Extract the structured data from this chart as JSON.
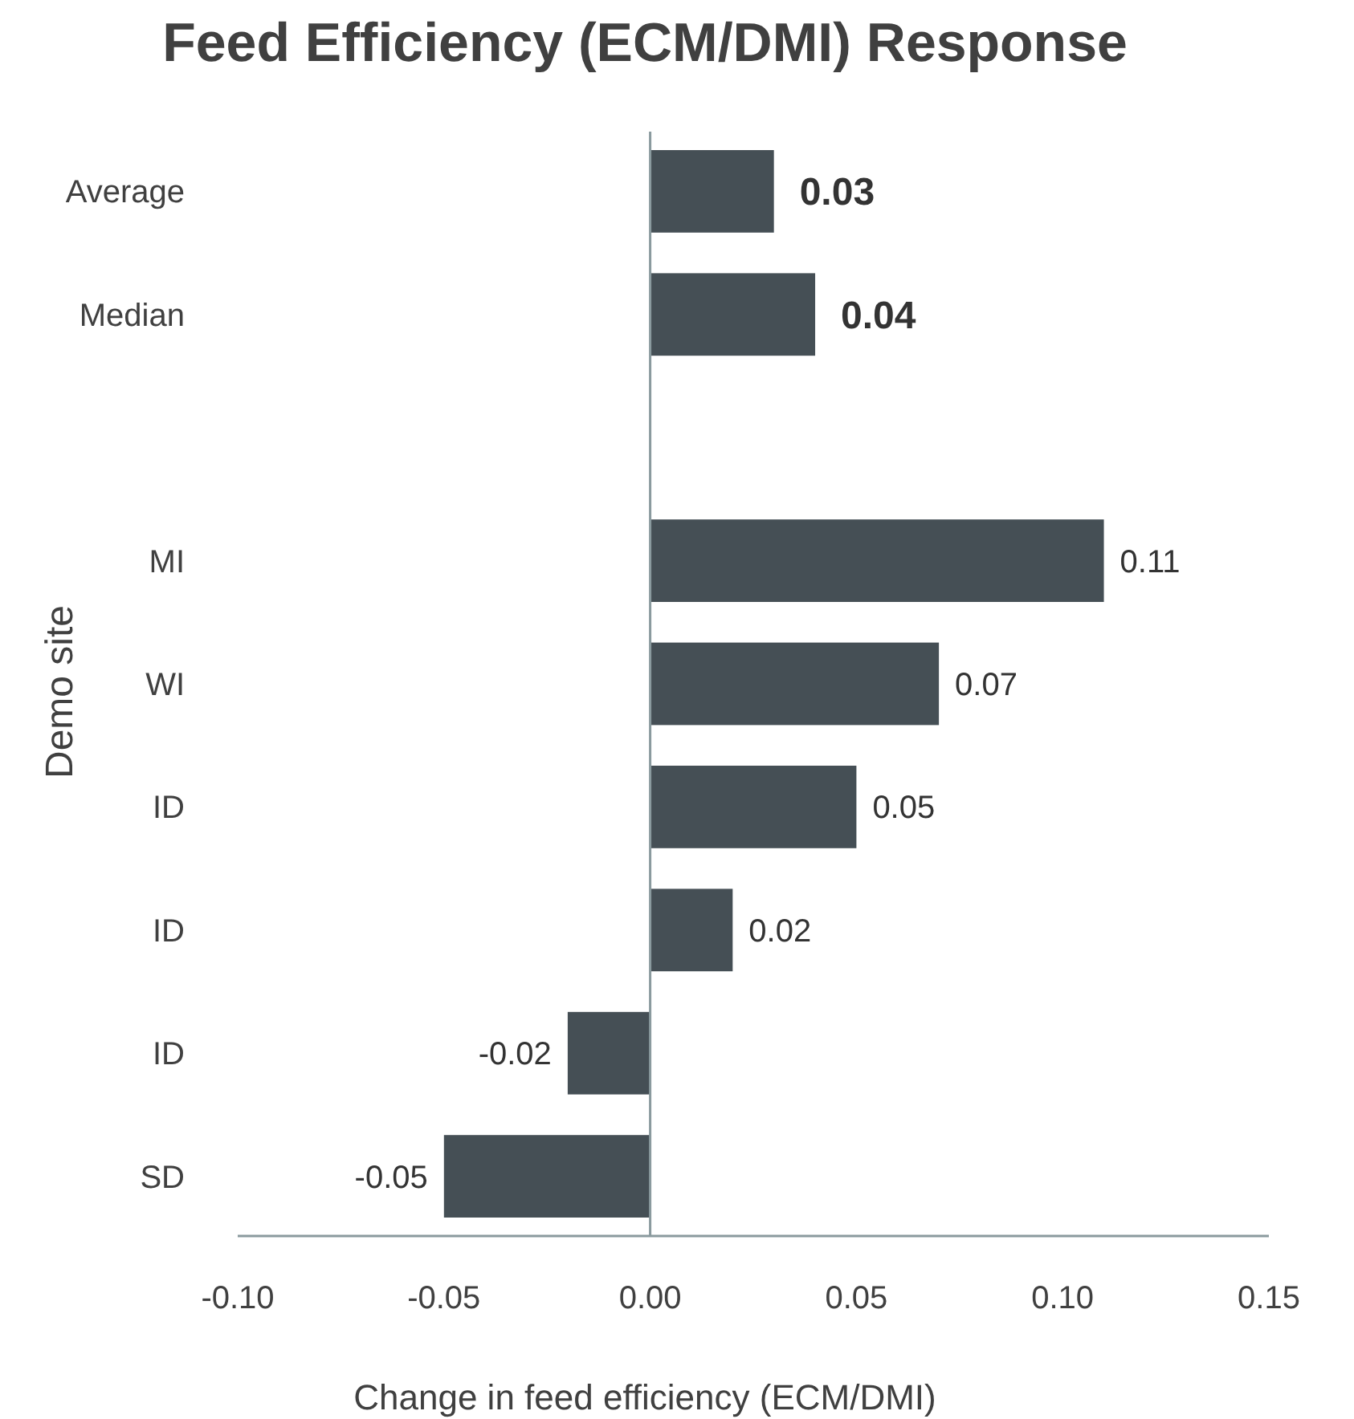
{
  "chart_data": {
    "type": "bar",
    "orientation": "horizontal",
    "title": "Feed Efficiency (ECM/DMI) Response",
    "xlabel": "Change in feed efficiency (ECM/DMI)",
    "ylabel": "Demo site",
    "categories": [
      "Average",
      "Median",
      null,
      "MI",
      "WI",
      "ID",
      "ID",
      "ID",
      "SD"
    ],
    "values": [
      0.03,
      0.04,
      null,
      0.11,
      0.07,
      0.05,
      0.02,
      -0.02,
      -0.05
    ],
    "color": "#454f55",
    "data_labels": true,
    "xlim": [
      -0.1,
      0.15
    ],
    "xticks": [
      {
        "value": -0.1,
        "label": "-0.10"
      },
      {
        "value": -0.05,
        "label": "-0.05"
      },
      {
        "value": 0,
        "label": "0.00"
      },
      {
        "value": 0.05,
        "label": "0.05"
      },
      {
        "value": 0.1,
        "label": "0.10"
      },
      {
        "value": 0.15,
        "label": "0.15"
      }
    ]
  }
}
